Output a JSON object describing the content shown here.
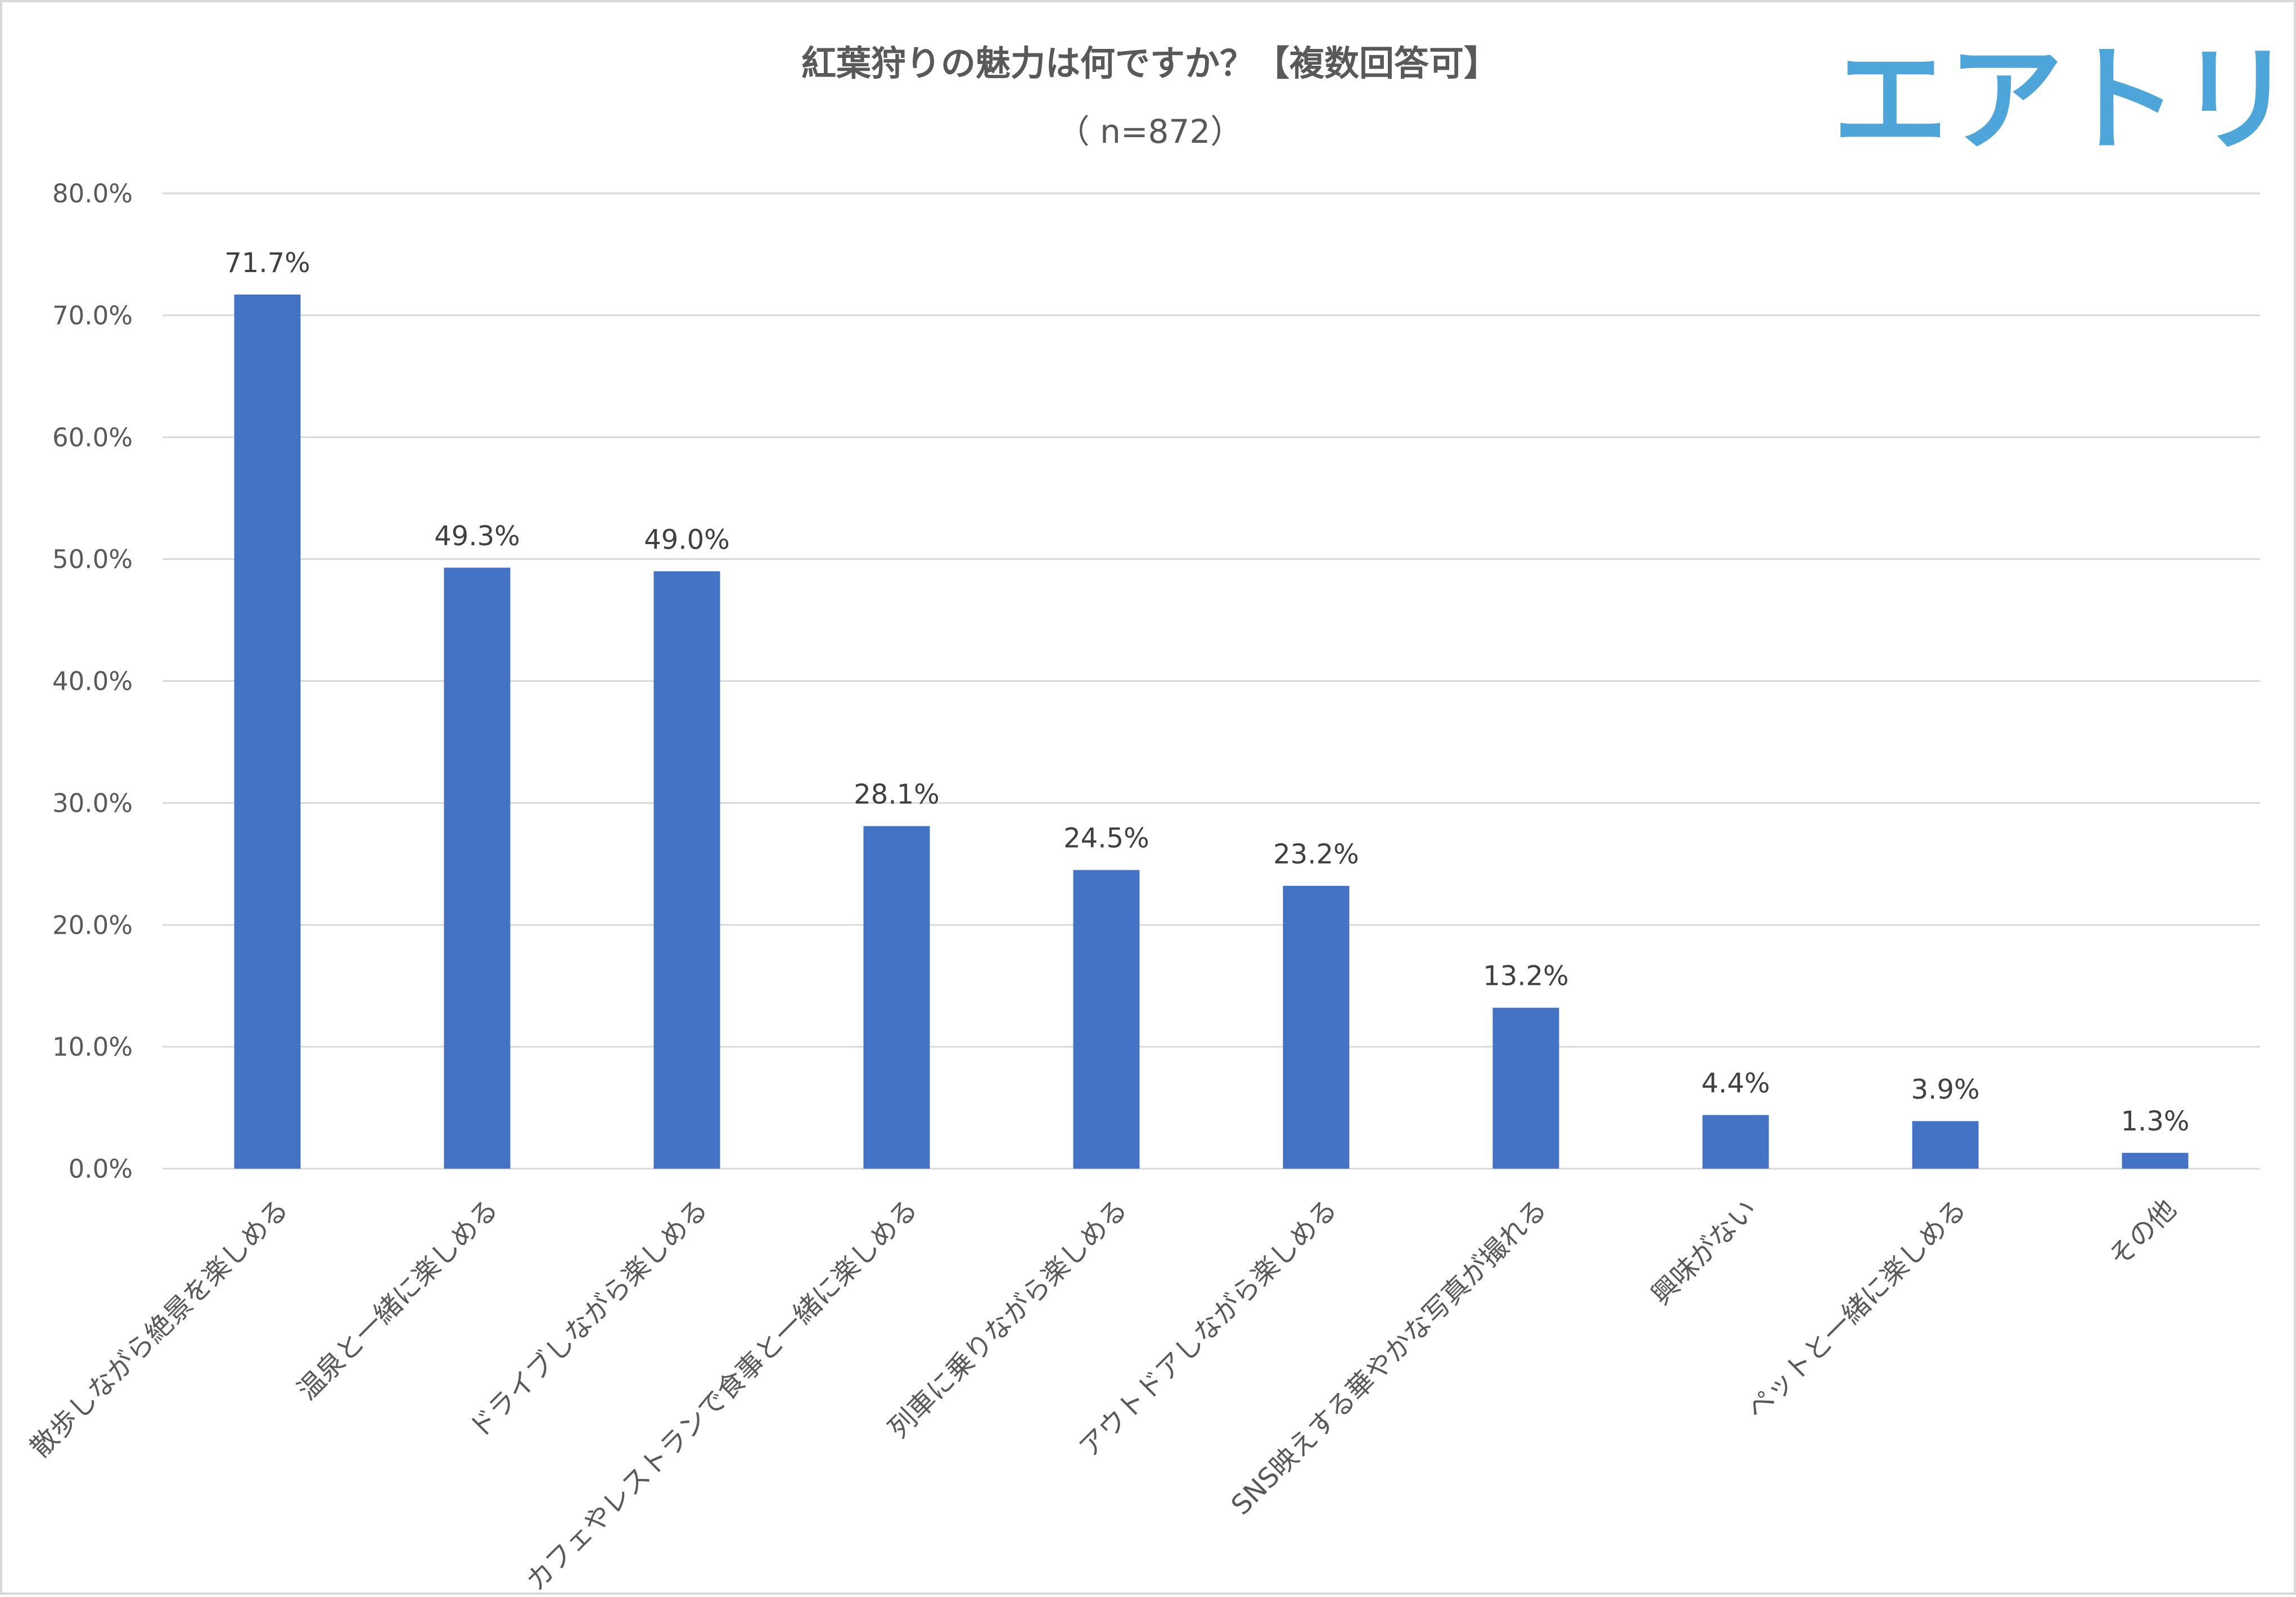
{
  "chart_data": {
    "type": "bar",
    "title": "紅葉狩りの魅力は何ですか？【複数回答可】",
    "subtitle": "（ n=872）",
    "xlabel": "",
    "ylabel": "",
    "ylim": [
      0,
      80
    ],
    "y_ticks": [
      0,
      10,
      20,
      30,
      40,
      50,
      60,
      70,
      80
    ],
    "y_tick_labels": [
      "0.0%",
      "10.0%",
      "20.0%",
      "30.0%",
      "40.0%",
      "50.0%",
      "60.0%",
      "70.0%",
      "80.0%"
    ],
    "grid": true,
    "legend": "none",
    "bar_color": "#4472c4",
    "categories": [
      "散歩しながら絶景を楽しめる",
      "温泉と一緒に楽しめる",
      "ドライブしながら楽しめる",
      "カフェやレストランで食事と一緒に楽しめる",
      "列車に乗りながら楽しめる",
      "アウトドアしながら楽しめる",
      "SNS映えする華やかな写真が撮れる",
      "興味がない",
      "ペットと一緒に楽しめる",
      "その他"
    ],
    "values": [
      71.7,
      49.3,
      49.0,
      28.1,
      24.5,
      23.2,
      13.2,
      4.4,
      3.9,
      1.3
    ],
    "value_labels": [
      "71.7%",
      "49.3%",
      "49.0%",
      "28.1%",
      "24.5%",
      "23.2%",
      "13.2%",
      "4.4%",
      "3.9%",
      "1.3%"
    ]
  },
  "logo": {
    "text": "エアトリ",
    "color": "#4ea5d9"
  }
}
